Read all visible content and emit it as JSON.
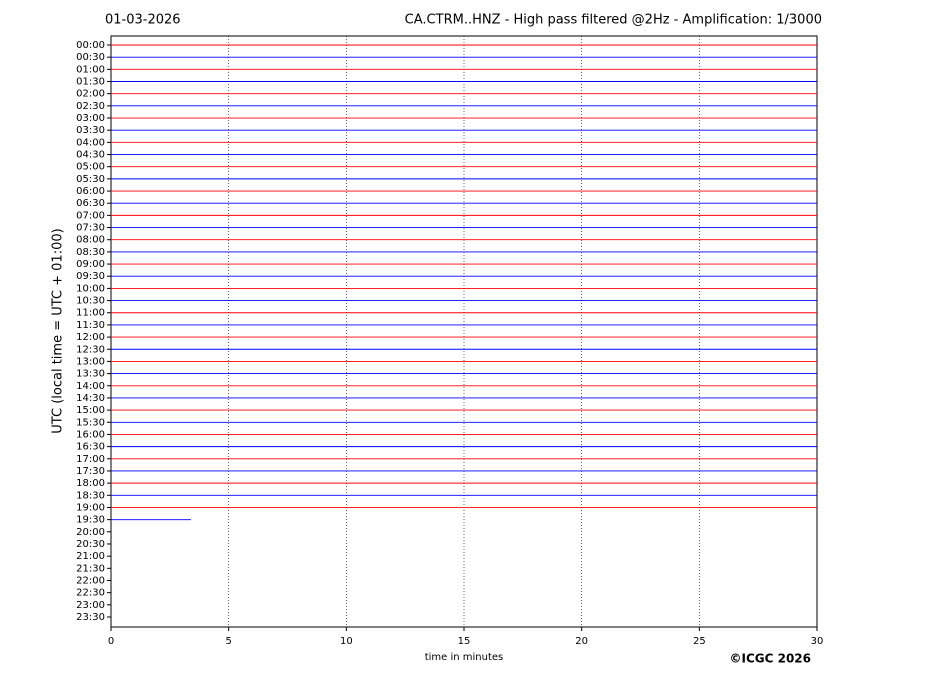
{
  "chart_data": {
    "type": "helicorder",
    "title_left": "01-03-2026",
    "title": "CA.CTRM..HNZ - High pass filtered @2Hz - Amplification: 1/3000",
    "y_label": "UTC (local time = UTC + 01:00)",
    "x_label": "time in minutes",
    "copyright": "©ICGC 2026",
    "categories": [
      "00:00",
      "00:30",
      "01:00",
      "01:30",
      "02:00",
      "02:30",
      "03:00",
      "03:30",
      "04:00",
      "04:30",
      "05:00",
      "05:30",
      "06:00",
      "06:30",
      "07:00",
      "07:30",
      "08:00",
      "08:30",
      "09:00",
      "09:30",
      "10:00",
      "10:30",
      "11:00",
      "11:30",
      "12:00",
      "12:30",
      "13:00",
      "13:30",
      "14:00",
      "14:30",
      "15:00",
      "15:30",
      "16:00",
      "16:30",
      "17:00",
      "17:30",
      "18:00",
      "18:30",
      "19:00",
      "19:30",
      "20:00",
      "20:30",
      "21:00",
      "21:30",
      "22:00",
      "22:30",
      "23:00",
      "23:30"
    ],
    "values": [
      30,
      30,
      30,
      30,
      30,
      30,
      30,
      30,
      30,
      30,
      30,
      30,
      30,
      30,
      30,
      30,
      30,
      30,
      30,
      30,
      30,
      30,
      30,
      30,
      30,
      30,
      30,
      30,
      30,
      30,
      30,
      30,
      30,
      30,
      30,
      30,
      30,
      30,
      30,
      3.4,
      null,
      null,
      null,
      null,
      null,
      null,
      null,
      null
    ],
    "colors": [
      "#ff0000",
      "#0000ff"
    ],
    "xlim": [
      0,
      30
    ],
    "xticks": [
      0,
      5,
      10,
      15,
      20,
      25,
      30
    ],
    "grid": true
  }
}
